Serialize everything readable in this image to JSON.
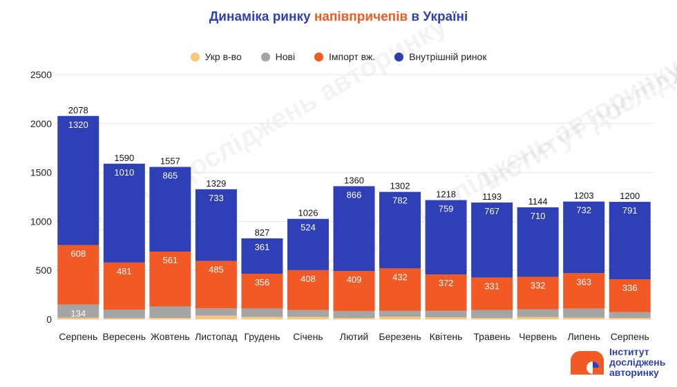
{
  "title": {
    "prefix": "Динаміка ринку ",
    "highlight": "напівпричепів",
    "suffix": " в Україні"
  },
  "colors": {
    "ukr": "#f7c87a",
    "new": "#a5a5a5",
    "import": "#f15a24",
    "domestic": "#2f3fb6",
    "title": "#2f3fb6"
  },
  "watermark": {
    "text": "Інститут досліджень авторинку"
  },
  "logo": {
    "line1": "Інститут",
    "line2": "досліджень",
    "line3": "авторинку"
  },
  "chart_data": {
    "type": "bar",
    "stacked": true,
    "categories": [
      "Серпень",
      "Вересень",
      "Жовтень",
      "Листопад",
      "Грудень",
      "Січень",
      "Лютий",
      "Березень",
      "Квітень",
      "Травень",
      "Червень",
      "Липень",
      "Серпень"
    ],
    "series": [
      {
        "name": "Укр в-во",
        "color": "#f7c87a",
        "values": [
          16,
          10,
          14,
          38,
          24,
          24,
          14,
          26,
          20,
          14,
          22,
          16,
          14
        ]
      },
      {
        "name": "Нові",
        "color": "#a5a5a5",
        "values": [
          134,
          89,
          117,
          73,
          86,
          70,
          71,
          62,
          67,
          81,
          80,
          92,
          59
        ]
      },
      {
        "name": "Імпорт вж.",
        "color": "#f15a24",
        "values": [
          608,
          481,
          561,
          485,
          356,
          408,
          409,
          432,
          372,
          331,
          332,
          363,
          336
        ]
      },
      {
        "name": "Внутрішній ринок",
        "color": "#2f3fb6",
        "values": [
          1320,
          1010,
          865,
          733,
          361,
          524,
          866,
          782,
          759,
          767,
          710,
          732,
          791
        ]
      }
    ],
    "totals": [
      2078,
      1590,
      1557,
      1329,
      827,
      1026,
      1360,
      1302,
      1218,
      1193,
      1144,
      1203,
      1200
    ],
    "data_labels": {
      "Внутрішній ринок": [
        1320,
        1010,
        865,
        733,
        361,
        524,
        866,
        782,
        759,
        767,
        710,
        732,
        791
      ],
      "Імпорт вж.": [
        608,
        481,
        561,
        485,
        356,
        408,
        409,
        432,
        372,
        331,
        332,
        363,
        336
      ],
      "Нові": [
        134,
        null,
        null,
        null,
        null,
        null,
        null,
        null,
        null,
        null,
        null,
        null,
        null
      ]
    },
    "ylim": [
      0,
      2500
    ],
    "yticks": [
      0,
      500,
      1000,
      1500,
      2000,
      2500
    ],
    "legend_position": "top-center",
    "grid": true
  }
}
